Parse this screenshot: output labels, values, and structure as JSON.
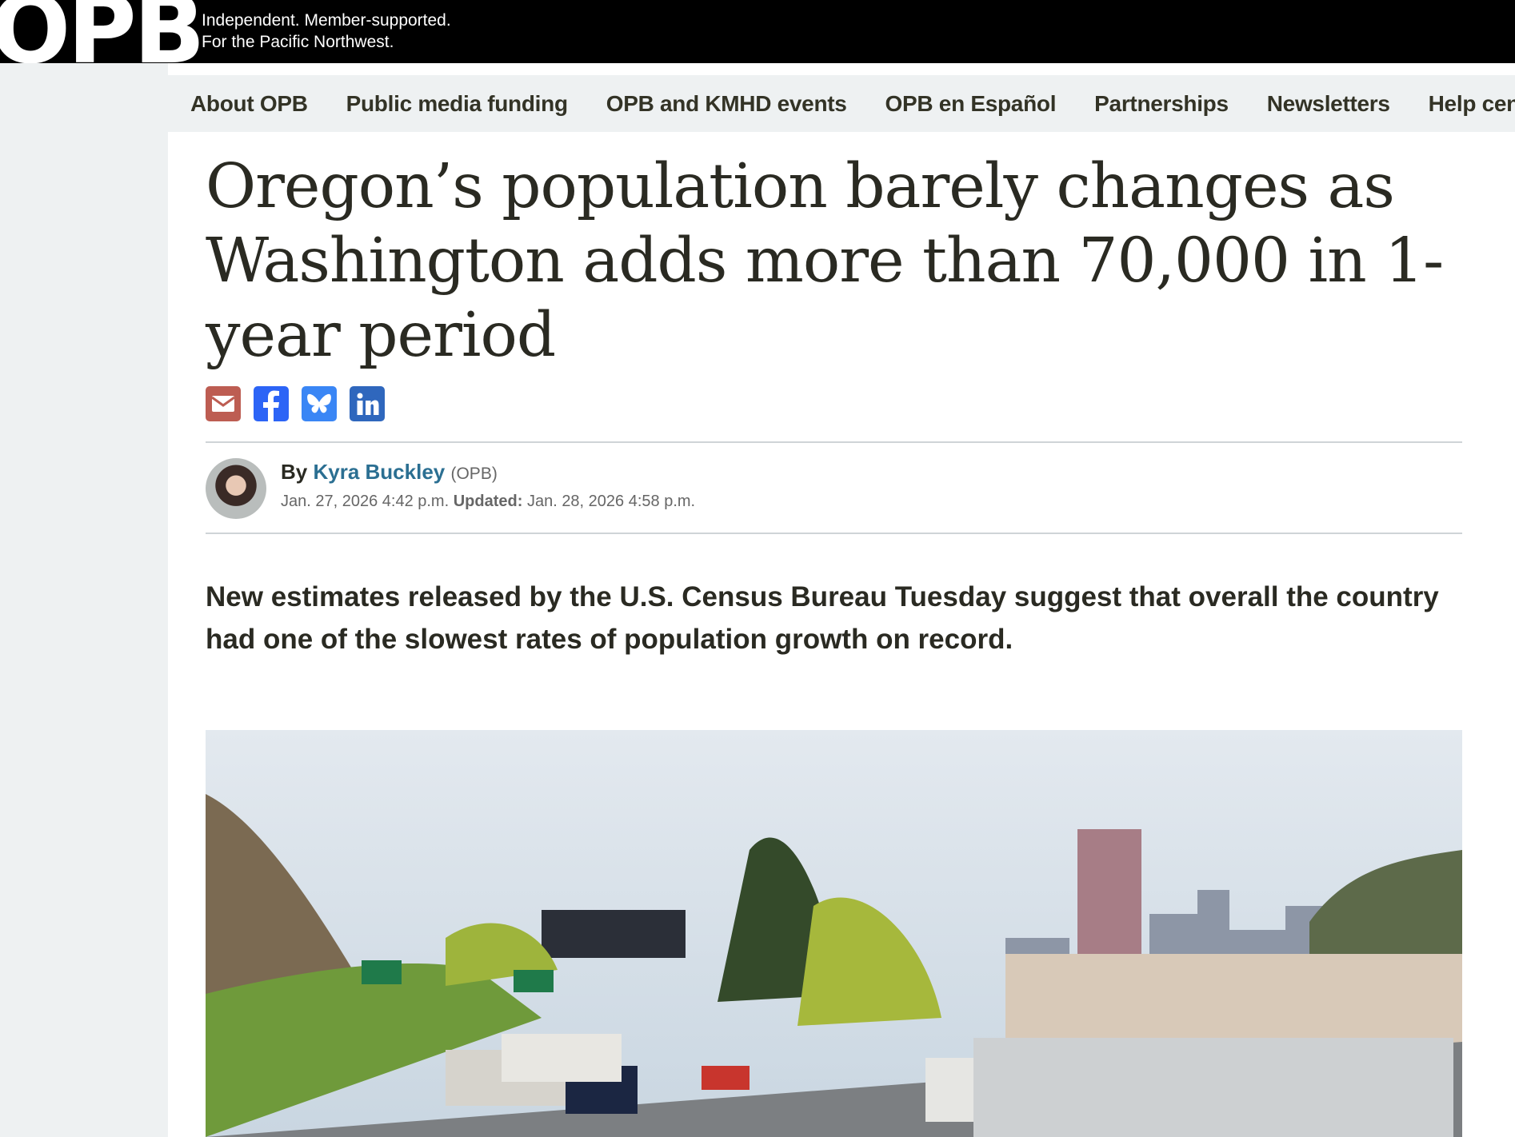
{
  "header": {
    "logo": "OPB",
    "tagline_line1": "Independent. Member-supported.",
    "tagline_line2": "For the Pacific Northwest."
  },
  "nav": {
    "items": [
      {
        "label": "About OPB"
      },
      {
        "label": "Public media funding"
      },
      {
        "label": "OPB and KMHD events"
      },
      {
        "label": "OPB en Español"
      },
      {
        "label": "Partnerships"
      },
      {
        "label": "Newsletters"
      },
      {
        "label": "Help center"
      }
    ]
  },
  "article": {
    "title": "Oregon’s population barely changes as Washington adds more than 70,000 in 1-year period",
    "share": [
      {
        "icon": "email-icon",
        "color": "#bd5d52"
      },
      {
        "icon": "facebook-icon",
        "color": "#2c64f6"
      },
      {
        "icon": "bluesky-icon",
        "color": "#3a86f5"
      },
      {
        "icon": "linkedin-icon",
        "color": "#2f67bd"
      }
    ],
    "byline_prefix": "By",
    "author": "Kyra Buckley",
    "organization": "(OPB)",
    "published": "Jan. 27, 2026 4:42 p.m.",
    "updated_label": "Updated:",
    "updated": "Jan. 28, 2026 4:58 p.m.",
    "lede": "New estimates released by the U.S. Census Bureau Tuesday suggest that overall the country had one of the slowest rates of population growth on record.",
    "author_link_color": "#2b6f92"
  }
}
